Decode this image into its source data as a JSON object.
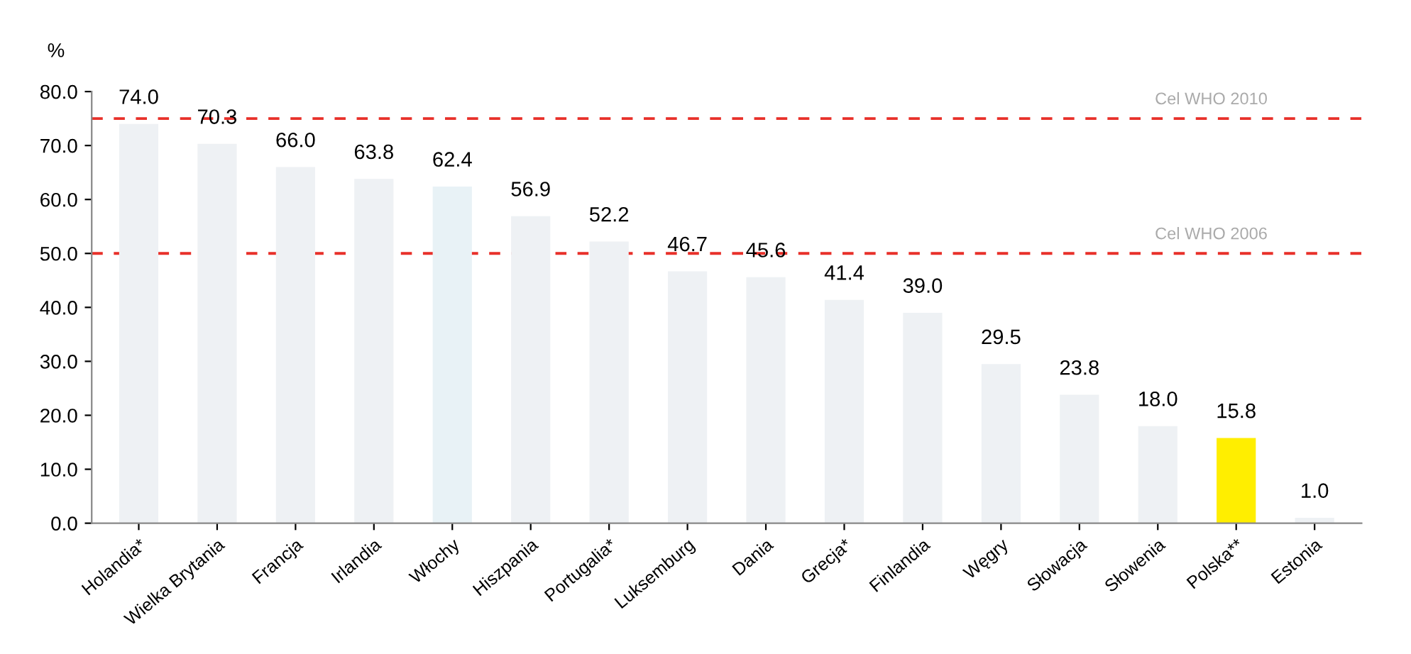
{
  "chart_data": {
    "type": "bar",
    "ylabel": "%",
    "categories": [
      "Holandia*",
      "Wielka Brytania",
      "Francja",
      "Irlandia",
      "Włochy",
      "Hiszpania",
      "Portugalia*",
      "Luksemburg",
      "Dania",
      "Grecja*",
      "Finlandia",
      "Węgry",
      "Słowacja",
      "Słowenia",
      "Polska**",
      "Estonia"
    ],
    "values": [
      74.0,
      70.3,
      66.0,
      63.8,
      62.4,
      56.9,
      52.2,
      46.7,
      45.6,
      41.4,
      39.0,
      29.5,
      23.8,
      18.0,
      15.8,
      1.0
    ],
    "value_labels": [
      "74.0",
      "70.3",
      "66.0",
      "63.8",
      "62.4",
      "56.9",
      "52.2",
      "46.7",
      "45.6",
      "41.4",
      "39.0",
      "29.5",
      "23.8",
      "18.0",
      "15.8",
      "1.0"
    ],
    "colors": [
      "#eef1f4",
      "#eef1f4",
      "#eef1f4",
      "#eef1f4",
      "#e8f2f6",
      "#eef1f4",
      "#eef1f4",
      "#eef1f4",
      "#eef1f4",
      "#eef1f4",
      "#eef1f4",
      "#eef1f4",
      "#eef1f4",
      "#eef1f4",
      "#ffee00",
      "#eef1f4"
    ],
    "ylim": [
      0,
      80
    ],
    "yticks": [
      {
        "value": 0,
        "label": "0.0"
      },
      {
        "value": 10,
        "label": "10.0"
      },
      {
        "value": 20,
        "label": "20.0"
      },
      {
        "value": 30,
        "label": "30.0"
      },
      {
        "value": 40,
        "label": "40.0"
      },
      {
        "value": 50,
        "label": "50.0"
      },
      {
        "value": 60,
        "label": "60.0"
      },
      {
        "value": 70,
        "label": "70.0"
      },
      {
        "value": 80,
        "label": "80.0"
      }
    ],
    "ref_lines": [
      {
        "axis": "y",
        "value": 75,
        "label": "Cel WHO 2010",
        "color": "#e8302a",
        "line_style": "dashed"
      },
      {
        "axis": "y",
        "value": 50,
        "label": "Cel WHO 2006",
        "color": "#e8302a",
        "line_style": "dashed"
      }
    ],
    "grid": false
  }
}
